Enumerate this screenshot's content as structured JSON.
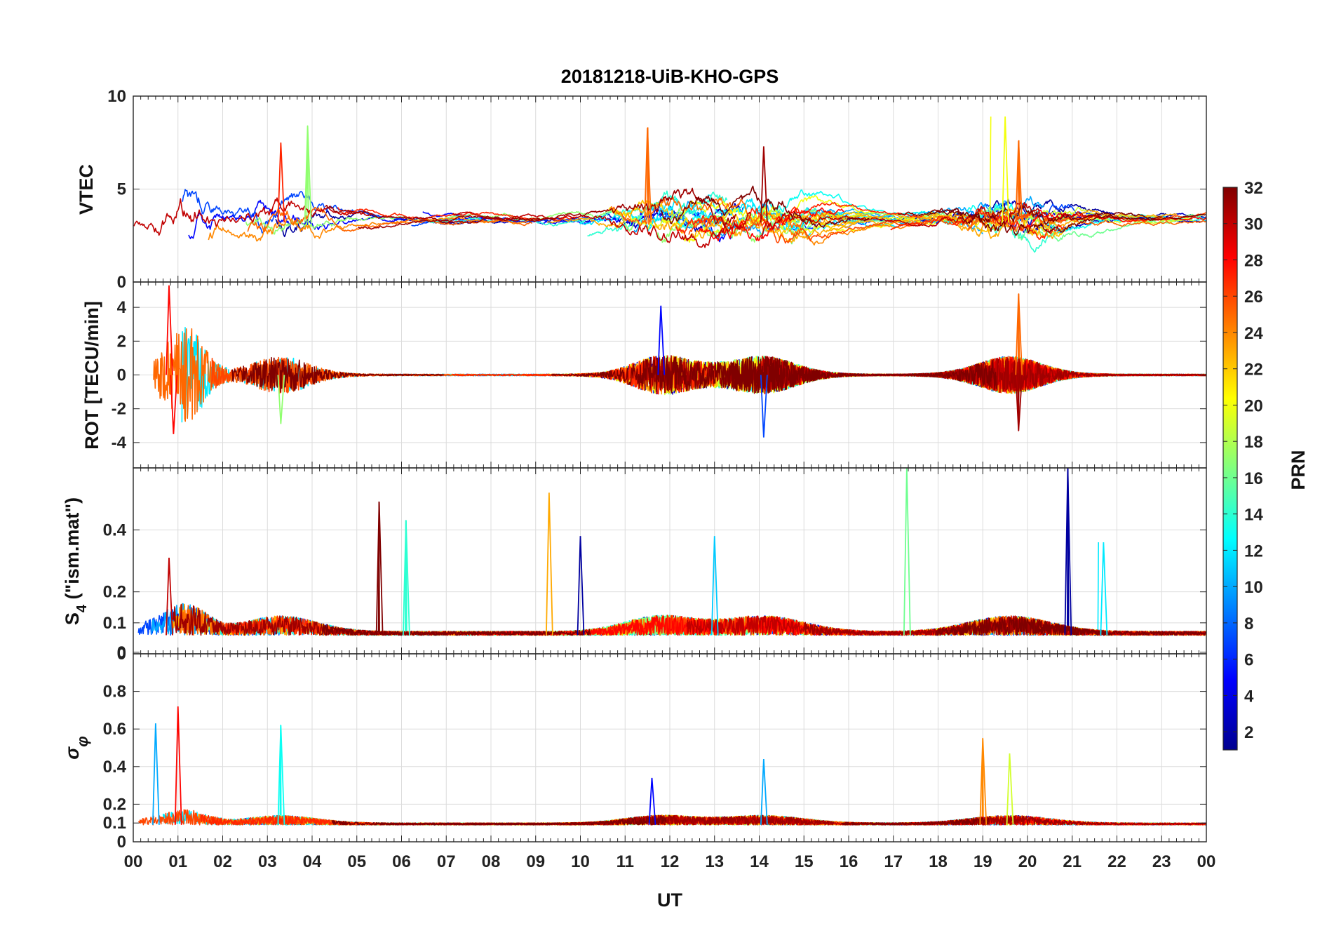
{
  "chart_data": {
    "type": "line",
    "title": "20181218-UiB-KHO-GPS",
    "xlabel": "UT",
    "x_tick_labels": [
      "00",
      "01",
      "02",
      "03",
      "04",
      "05",
      "06",
      "07",
      "08",
      "09",
      "10",
      "11",
      "12",
      "13",
      "14",
      "15",
      "16",
      "17",
      "18",
      "19",
      "20",
      "21",
      "22",
      "23",
      "00"
    ],
    "xlim_hours": [
      0,
      24
    ],
    "colorbar": {
      "label": "PRN",
      "range": [
        1,
        32
      ],
      "ticks": [
        "2",
        "4",
        "6",
        "8",
        "10",
        "12",
        "14",
        "16",
        "18",
        "20",
        "22",
        "24",
        "26",
        "28",
        "30",
        "32"
      ],
      "colormap": "jet"
    },
    "panels": [
      {
        "ylabel": "VTEC",
        "ylim": [
          0,
          10
        ],
        "yticks": [
          "0",
          "5",
          "10"
        ],
        "baseline": 3.2,
        "approx_peaks": [
          {
            "hour": 3.3,
            "value": 7.5,
            "prn": 27
          },
          {
            "hour": 3.9,
            "value": 8.4,
            "prn": 17
          },
          {
            "hour": 11.5,
            "value": 8.3,
            "prn": 25
          },
          {
            "hour": 14.1,
            "value": 7.3,
            "prn": 31
          },
          {
            "hour": 19.5,
            "value": 8.9,
            "prn": 20
          },
          {
            "hour": 19.8,
            "value": 7.6,
            "prn": 25
          }
        ]
      },
      {
        "ylabel": "ROT [TECU/min]",
        "ylim": [
          -5.5,
          5.5
        ],
        "yticks": [
          "-4",
          "-2",
          "0",
          "2",
          "4"
        ],
        "baseline": 0,
        "approx_peaks": [
          {
            "hour": 0.8,
            "value": 5.3,
            "prn": 28
          },
          {
            "hour": 0.9,
            "value": -3.5,
            "prn": 28
          },
          {
            "hour": 3.3,
            "value": -2.9,
            "prn": 17
          },
          {
            "hour": 11.8,
            "value": 4.1,
            "prn": 5
          },
          {
            "hour": 14.1,
            "value": -3.7,
            "prn": 7
          },
          {
            "hour": 19.8,
            "value": 4.8,
            "prn": 25
          },
          {
            "hour": 19.8,
            "value": -3.3,
            "prn": 31
          }
        ]
      },
      {
        "ylabel": "S4 (\"ism.mat\")",
        "ylabel_main": "S",
        "ylabel_sub": "4",
        "ylabel_rest": " (\"ism.mat\")",
        "ylim": [
          0,
          0.6
        ],
        "yticks": [
          "0",
          "0",
          "0.1",
          "0.2",
          "0.4"
        ],
        "baseline": 0.06,
        "approx_peaks": [
          {
            "hour": 0.8,
            "value": 0.31,
            "prn": 30
          },
          {
            "hour": 5.5,
            "value": 0.49,
            "prn": 32
          },
          {
            "hour": 6.1,
            "value": 0.43,
            "prn": 14
          },
          {
            "hour": 9.3,
            "value": 0.52,
            "prn": 23
          },
          {
            "hour": 10.0,
            "value": 0.38,
            "prn": 2
          },
          {
            "hour": 13.0,
            "value": 0.38,
            "prn": 11
          },
          {
            "hour": 17.3,
            "value": 0.6,
            "prn": 16
          },
          {
            "hour": 20.9,
            "value": 0.6,
            "prn": 2
          },
          {
            "hour": 21.7,
            "value": 0.36,
            "prn": 12
          }
        ]
      },
      {
        "ylabel": "σφ",
        "ylabel_main": "σ",
        "ylabel_sub": "φ",
        "ylim": [
          0,
          1
        ],
        "yticks": [
          "0",
          "0.1",
          "0.2",
          "0.4",
          "0.6",
          "0.8"
        ],
        "baseline": 0.09,
        "approx_peaks": [
          {
            "hour": 0.5,
            "value": 0.63,
            "prn": 10
          },
          {
            "hour": 1.0,
            "value": 0.72,
            "prn": 28
          },
          {
            "hour": 3.3,
            "value": 0.62,
            "prn": 13
          },
          {
            "hour": 11.6,
            "value": 0.34,
            "prn": 5
          },
          {
            "hour": 14.1,
            "value": 0.44,
            "prn": 10
          },
          {
            "hour": 19.0,
            "value": 0.55,
            "prn": 24
          },
          {
            "hour": 19.6,
            "value": 0.47,
            "prn": 19
          }
        ]
      }
    ]
  }
}
